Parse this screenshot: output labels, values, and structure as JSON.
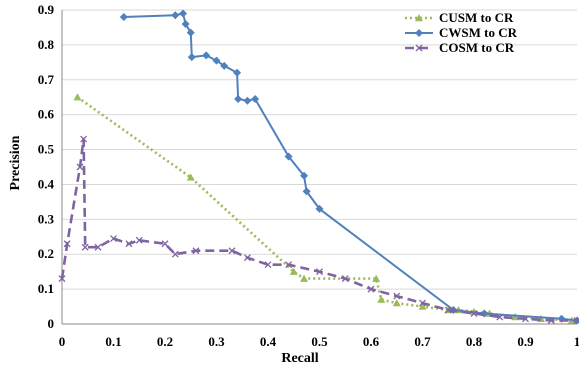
{
  "chart_data": {
    "type": "line",
    "title": "",
    "xlabel": "Recall",
    "ylabel": "Precision",
    "xlim": [
      0,
      1
    ],
    "ylim": [
      0,
      0.9
    ],
    "xticks": [
      "0",
      "0.1",
      "0.2",
      "0.3",
      "0.4",
      "0.5",
      "0.6",
      "0.7",
      "0.8",
      "0.9",
      "1"
    ],
    "yticks": [
      "0",
      "0.1",
      "0.2",
      "0.3",
      "0.4",
      "0.5",
      "0.6",
      "0.7",
      "0.8",
      "0.9"
    ],
    "grid": "horizontal",
    "legend_position": "top-right",
    "series": [
      {
        "name": "CUSM to CR",
        "color": "#9bbb59",
        "dash": "dotted",
        "marker": "triangle",
        "points": [
          [
            0.03,
            0.65
          ],
          [
            0.25,
            0.42
          ],
          [
            0.45,
            0.15
          ],
          [
            0.47,
            0.13
          ],
          [
            0.61,
            0.13
          ],
          [
            0.62,
            0.07
          ],
          [
            0.65,
            0.06
          ],
          [
            0.7,
            0.05
          ],
          [
            0.75,
            0.04
          ],
          [
            0.77,
            0.04
          ],
          [
            0.8,
            0.035
          ],
          [
            0.83,
            0.03
          ],
          [
            0.88,
            0.02
          ],
          [
            0.93,
            0.015
          ],
          [
            0.99,
            0.01
          ]
        ]
      },
      {
        "name": "CWSM to CR",
        "color": "#4f81bd",
        "dash": "solid",
        "marker": "diamond",
        "points": [
          [
            0.12,
            0.88
          ],
          [
            0.22,
            0.885
          ],
          [
            0.235,
            0.89
          ],
          [
            0.24,
            0.86
          ],
          [
            0.25,
            0.835
          ],
          [
            0.252,
            0.765
          ],
          [
            0.28,
            0.77
          ],
          [
            0.3,
            0.755
          ],
          [
            0.315,
            0.74
          ],
          [
            0.34,
            0.72
          ],
          [
            0.342,
            0.645
          ],
          [
            0.36,
            0.64
          ],
          [
            0.375,
            0.645
          ],
          [
            0.44,
            0.48
          ],
          [
            0.47,
            0.425
          ],
          [
            0.475,
            0.38
          ],
          [
            0.5,
            0.33
          ],
          [
            0.76,
            0.04
          ],
          [
            0.82,
            0.03
          ],
          [
            0.97,
            0.015
          ],
          [
            1.0,
            0.01
          ]
        ]
      },
      {
        "name": "COSM to CR",
        "color": "#8064a2",
        "dash": "dashed",
        "marker": "x",
        "points": [
          [
            0.0,
            0.13
          ],
          [
            0.01,
            0.23
          ],
          [
            0.035,
            0.45
          ],
          [
            0.042,
            0.53
          ],
          [
            0.045,
            0.22
          ],
          [
            0.07,
            0.22
          ],
          [
            0.1,
            0.245
          ],
          [
            0.13,
            0.23
          ],
          [
            0.15,
            0.24
          ],
          [
            0.2,
            0.23
          ],
          [
            0.22,
            0.2
          ],
          [
            0.26,
            0.21
          ],
          [
            0.33,
            0.21
          ],
          [
            0.36,
            0.19
          ],
          [
            0.4,
            0.17
          ],
          [
            0.44,
            0.17
          ],
          [
            0.5,
            0.15
          ],
          [
            0.55,
            0.13
          ],
          [
            0.6,
            0.1
          ],
          [
            0.65,
            0.08
          ],
          [
            0.7,
            0.06
          ],
          [
            0.75,
            0.04
          ],
          [
            0.8,
            0.03
          ],
          [
            0.85,
            0.02
          ],
          [
            0.9,
            0.015
          ],
          [
            0.95,
            0.01
          ],
          [
            1.0,
            0.01
          ]
        ]
      }
    ]
  }
}
